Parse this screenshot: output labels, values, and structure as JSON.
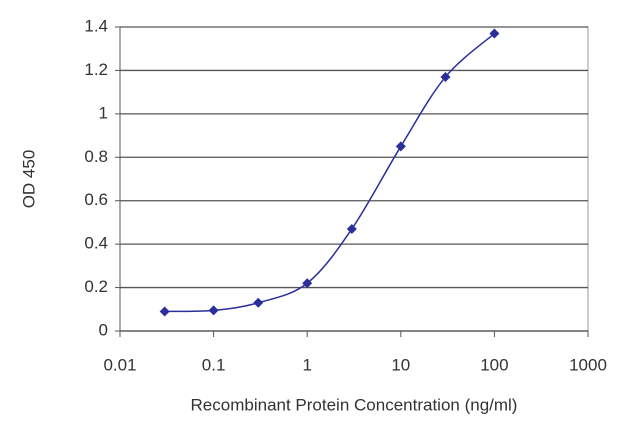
{
  "chart_data": {
    "type": "line",
    "x_label": "Recombinant Protein Concentration (ng/ml)",
    "y_label": "OD 450",
    "xscale": "log",
    "x": [
      0.03,
      0.1,
      0.3,
      1,
      3,
      10,
      30,
      100
    ],
    "series": [
      {
        "color": "#2a2f9c",
        "values": [
          0.09,
          0.095,
          0.13,
          0.22,
          0.47,
          0.85,
          1.17,
          1.37
        ]
      }
    ],
    "xlim": [
      0.01,
      1000
    ],
    "xticks": [
      0.01,
      0.1,
      1,
      10,
      100,
      1000
    ],
    "ylim": [
      0,
      1.4
    ],
    "yticks": [
      0,
      0.2,
      0.4,
      0.6,
      0.8,
      1,
      1.2,
      1.4
    ],
    "grid": true
  }
}
